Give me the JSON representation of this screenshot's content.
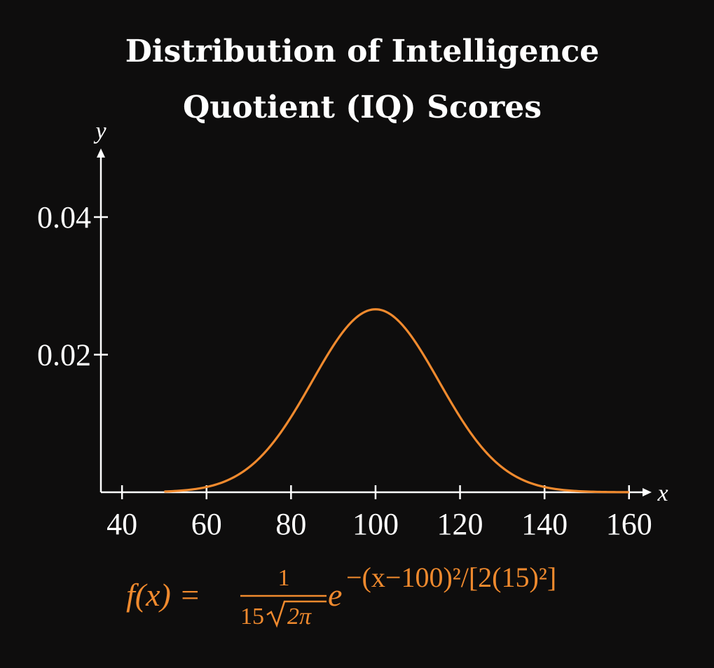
{
  "colors": {
    "background": "#0e0d0d",
    "axes": "#ffffff",
    "curve": "#f08a2e",
    "formula": "#f08a2e"
  },
  "chart_data": {
    "type": "line",
    "title": "Distribution of Intelligence Quotient (IQ) Scores",
    "title_lines": [
      "Distribution of Intelligence",
      "Quotient (IQ) Scores"
    ],
    "xlabel": "x",
    "ylabel": "y",
    "xlim": [
      35,
      162
    ],
    "ylim": [
      0,
      0.0505
    ],
    "x_ticks": [
      40,
      60,
      80,
      100,
      120,
      140,
      160
    ],
    "y_ticks": [
      0.02,
      0.04
    ],
    "x_tick_labels": [
      "40",
      "60",
      "80",
      "100",
      "120",
      "140",
      "160"
    ],
    "y_tick_labels": [
      "0.02",
      "0.04"
    ],
    "grid": false,
    "series": [
      {
        "kind": "normal-pdf",
        "mean": 100,
        "sd": 15,
        "x_range": [
          50,
          160
        ],
        "peak": 0.0266
      }
    ],
    "annotation": {
      "lhs": "f(x) = ",
      "numerator": "1",
      "denominator_prefix": "15",
      "radicand": "2π",
      "base": "e",
      "exponent": "−(x−100)²/[2(15)²]"
    }
  }
}
